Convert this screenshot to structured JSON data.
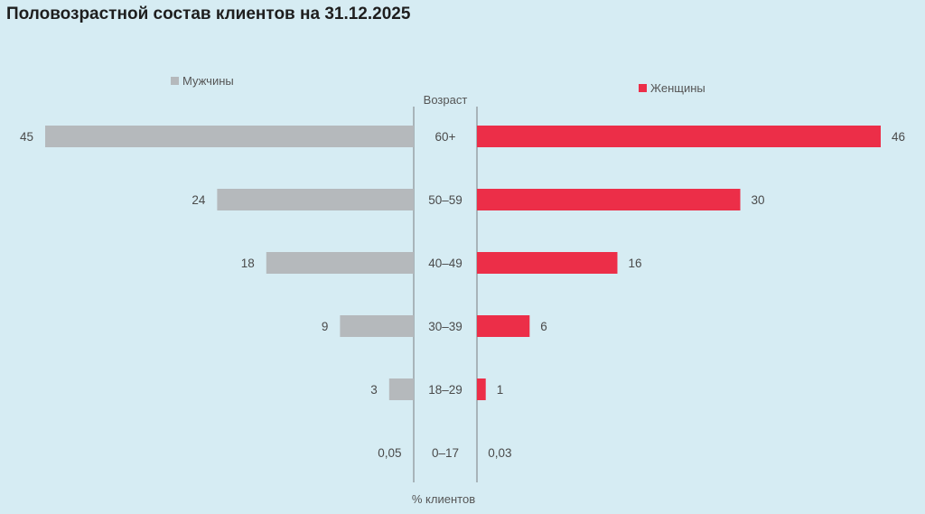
{
  "title": "Половозрастной состав клиентов на 31.12.2025",
  "colors": {
    "men": "#b5b9bc",
    "women": "#ec2e48",
    "axis": "#8a8f93",
    "background": "#d6ecf3"
  },
  "chart_data": {
    "type": "bar",
    "orientation": "horizontal",
    "layout": "population-pyramid",
    "title": "Половозрастной состав клиентов на 31.12.2025",
    "category_axis_title": "Возраст",
    "value_axis_title": "% клиентов",
    "categories": [
      "60+",
      "50–59",
      "40–49",
      "30–39",
      "18–29",
      "0–17"
    ],
    "series": [
      {
        "name": "Мужчины",
        "side": "left",
        "values": [
          45,
          24,
          18,
          9,
          3,
          0.05
        ],
        "labels": [
          "45",
          "24",
          "18",
          "9",
          "3",
          "0,05"
        ]
      },
      {
        "name": "Женщины",
        "side": "right",
        "values": [
          46,
          30,
          16,
          6,
          1,
          0.03
        ],
        "labels": [
          "46",
          "30",
          "16",
          "6",
          "1",
          "0,03"
        ]
      }
    ],
    "xlim": [
      0,
      46
    ],
    "legend": {
      "men": "top-left",
      "women": "top-right"
    },
    "grid": false
  }
}
